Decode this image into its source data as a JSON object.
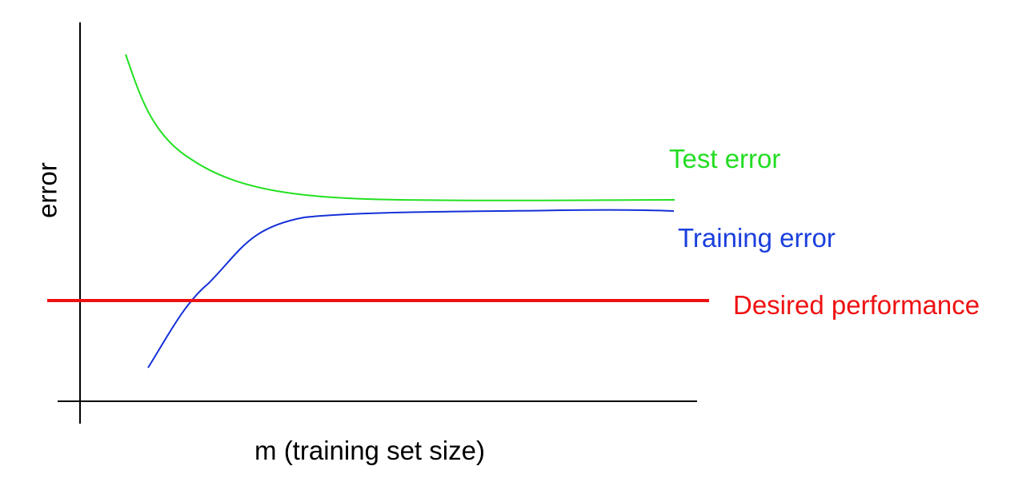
{
  "axes": {
    "y_label": "error",
    "x_label": "m (training set size)"
  },
  "curves": [
    {
      "label": "Test error"
    },
    {
      "label": "Training error"
    },
    {
      "label": "Desired performance"
    }
  ]
}
